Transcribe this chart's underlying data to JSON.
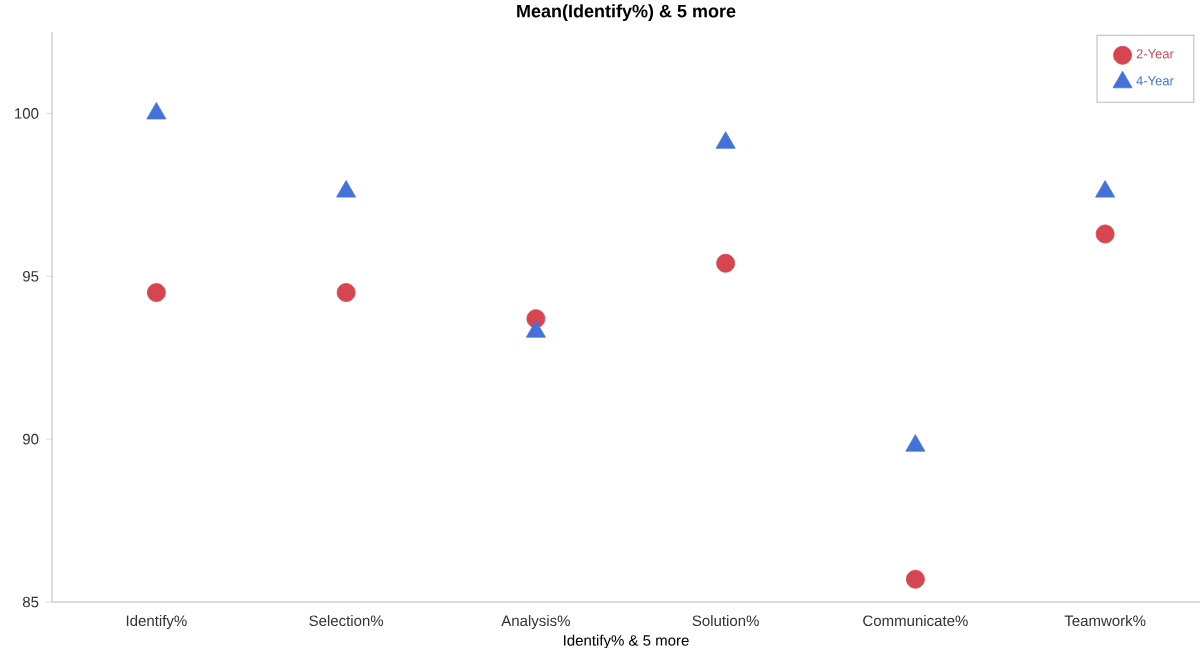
{
  "chart_data": {
    "type": "scatter",
    "title": "Mean(Identify%) & 5 more",
    "xlabel": "Identify% & 5 more",
    "categories": [
      "Identify%",
      "Selection%",
      "Analysis%",
      "Solution%",
      "Communicate%",
      "Teamwork%"
    ],
    "series": [
      {
        "name": "2-Year",
        "color": "#d64550",
        "marker": "circle",
        "values": [
          94.5,
          94.5,
          93.7,
          95.4,
          85.7,
          96.3
        ]
      },
      {
        "name": "4-Year",
        "color": "#4472d8",
        "marker": "triangle",
        "values": [
          100.0,
          97.6,
          93.3,
          99.1,
          89.8,
          97.6
        ]
      }
    ],
    "ylim": [
      85,
      102.5
    ],
    "yticks": [
      85,
      90,
      95,
      100
    ],
    "grid": false,
    "legend": "top right"
  }
}
